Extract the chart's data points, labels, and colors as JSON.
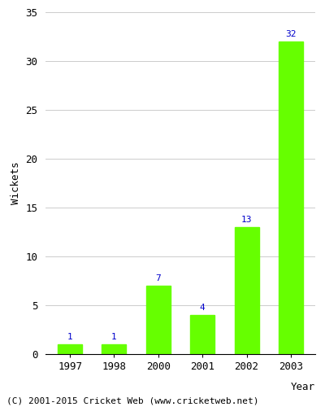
{
  "years": [
    "1997",
    "1998",
    "2000",
    "2001",
    "2002",
    "2003"
  ],
  "values": [
    1,
    1,
    7,
    4,
    13,
    32
  ],
  "bar_color": "#66ff00",
  "bar_edgecolor": "#66ff00",
  "label_color": "#0000cc",
  "ylabel": "Wickets",
  "xlabel": "Year",
  "ylim": [
    0,
    35
  ],
  "yticks": [
    0,
    5,
    10,
    15,
    20,
    25,
    30,
    35
  ],
  "title": "",
  "footer": "(C) 2001-2015 Cricket Web (www.cricketweb.net)",
  "label_fontsize": 8,
  "axis_fontsize": 9,
  "tick_fontsize": 9,
  "footer_fontsize": 8,
  "background_color": "#ffffff",
  "grid_color": "#cccccc"
}
